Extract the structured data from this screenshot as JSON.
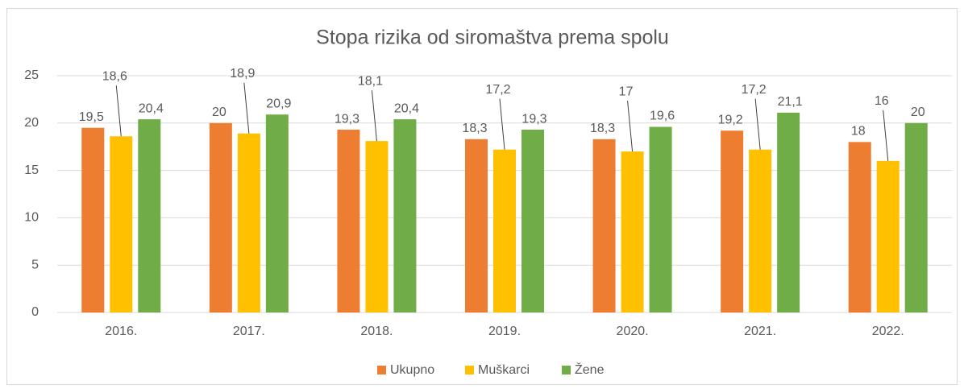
{
  "chart_data": {
    "type": "bar",
    "title": "Stopa rizika od siromaštva prema spolu",
    "categories": [
      "2016.",
      "2017.",
      "2018.",
      "2019.",
      "2020.",
      "2021.",
      "2022."
    ],
    "series": [
      {
        "name": "Ukupno",
        "color": "#ed7d31",
        "values": [
          19.5,
          20,
          19.3,
          18.3,
          18.3,
          19.2,
          18
        ],
        "value_labels": [
          "19,5",
          "20",
          "19,3",
          "18,3",
          "18,3",
          "19,2",
          "18"
        ]
      },
      {
        "name": "Muškarci",
        "color": "#ffc000",
        "values": [
          18.6,
          18.9,
          18.1,
          17.2,
          17,
          17.2,
          16
        ],
        "value_labels": [
          "18,6",
          "18,9",
          "18,1",
          "17,2",
          "17",
          "17,2",
          "16"
        ]
      },
      {
        "name": "Žene",
        "color": "#70ad47",
        "values": [
          20.4,
          20.9,
          20.4,
          19.3,
          19.6,
          21.1,
          20
        ],
        "value_labels": [
          "20,4",
          "20,9",
          "20,4",
          "19,3",
          "19,6",
          "21,1",
          "20"
        ]
      }
    ],
    "ylim": [
      0,
      25
    ],
    "yticks": [
      0,
      5,
      10,
      15,
      20,
      25
    ],
    "grid": true,
    "legend": "bottom"
  }
}
